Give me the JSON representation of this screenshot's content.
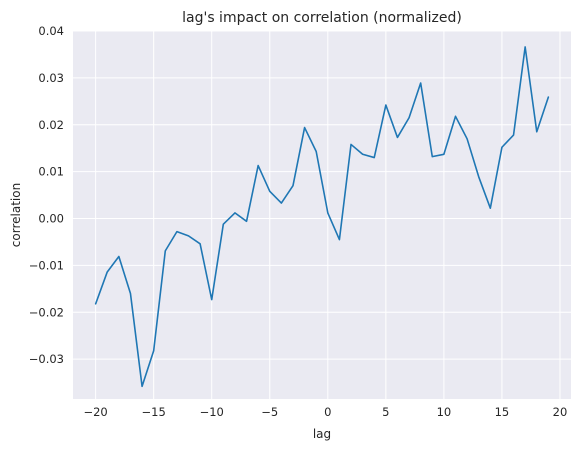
{
  "chart_data": {
    "type": "line",
    "title": "lag's impact on correlation (normalized)",
    "xlabel": "lag",
    "ylabel": "correlation",
    "xlim": [
      -21.95,
      20.95
    ],
    "ylim": [
      -0.0385,
      0.04
    ],
    "xticks": [
      -20,
      -15,
      -10,
      -5,
      0,
      5,
      10,
      15,
      20
    ],
    "xtick_labels": [
      "−20",
      "−15",
      "−10",
      "−5",
      "0",
      "5",
      "10",
      "15",
      "20"
    ],
    "yticks": [
      -0.03,
      -0.02,
      -0.01,
      0.0,
      0.01,
      0.02,
      0.03,
      0.04
    ],
    "ytick_labels": [
      "−0.03",
      "−0.02",
      "−0.01",
      "0.00",
      "0.01",
      "0.02",
      "0.03",
      "0.04"
    ],
    "grid": true,
    "background": "#eaeaf2",
    "line_color": "#1f77b4",
    "series": [
      {
        "x": [
          -20,
          -19,
          -18,
          -17,
          -16,
          -15,
          -14,
          -13,
          -12,
          -11,
          -10,
          -9,
          -8,
          -7,
          -6,
          -5,
          -4,
          -3,
          -2,
          -1,
          0,
          1,
          2,
          3,
          4,
          5,
          6,
          7,
          8,
          9,
          10,
          11,
          12,
          13,
          14,
          15,
          16,
          17,
          18,
          19
        ],
        "values": [
          -0.0182,
          -0.0114,
          -0.0081,
          -0.016,
          -0.0358,
          -0.0282,
          -0.0069,
          -0.0028,
          -0.0037,
          -0.0054,
          -0.0173,
          -0.0012,
          0.0012,
          -0.0006,
          0.0113,
          0.0058,
          0.0033,
          0.007,
          0.0194,
          0.0143,
          0.0012,
          -0.0045,
          0.0158,
          0.0137,
          0.013,
          0.0242,
          0.0173,
          0.0215,
          0.0289,
          0.0132,
          0.0137,
          0.0218,
          0.017,
          0.0089,
          0.0022,
          0.0152,
          0.0178,
          0.0366,
          0.0185,
          0.0259
        ]
      }
    ]
  }
}
